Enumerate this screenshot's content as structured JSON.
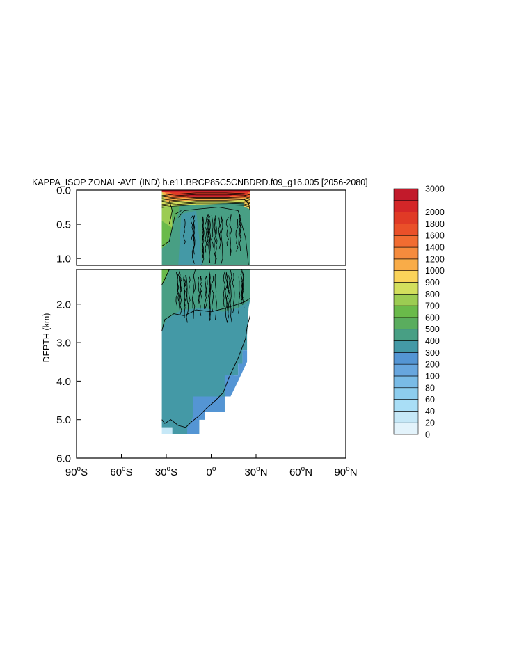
{
  "chart_data": {
    "type": "heatmap",
    "title": "KAPPA_ISOP ZONAL-AVE (IND) b.e11.BRCP85C5CNBDRD.f09_g16.005 [2056-2080]",
    "ylabel": "DEPTH (km)",
    "xlabel": "",
    "x_ticks": [
      {
        "value": -90,
        "num": "90",
        "hemi": "S"
      },
      {
        "value": -60,
        "num": "60",
        "hemi": "S"
      },
      {
        "value": -30,
        "num": "30",
        "hemi": "S"
      },
      {
        "value": 0,
        "num": "0",
        "hemi": ""
      },
      {
        "value": 30,
        "num": "30",
        "hemi": "N"
      },
      {
        "value": 60,
        "num": "60",
        "hemi": "N"
      },
      {
        "value": 90,
        "num": "90",
        "hemi": "N"
      }
    ],
    "xlim": [
      -90,
      90
    ],
    "upper_panel": {
      "ylim": [
        0.0,
        1.1
      ],
      "y_ticks": [
        "0.0",
        "0.5",
        "1.0"
      ],
      "y_tick_values": [
        0.0,
        0.5,
        1.0
      ]
    },
    "lower_panel": {
      "ylim": [
        1.1,
        6.0
      ],
      "y_ticks": [
        "2.0",
        "3.0",
        "4.0",
        "5.0",
        "6.0"
      ],
      "y_tick_values": [
        2.0,
        3.0,
        4.0,
        5.0,
        6.0
      ]
    },
    "colorbar": {
      "levels": [
        "0",
        "20",
        "40",
        "60",
        "80",
        "100",
        "200",
        "300",
        "400",
        "500",
        "600",
        "700",
        "800",
        "900",
        "1000",
        "1200",
        "1400",
        "1600",
        "1800",
        "2000",
        "3000"
      ],
      "colors": [
        "#e3f3fb",
        "#c6e8f7",
        "#a9def6",
        "#8dcdee",
        "#79bbe6",
        "#67a6de",
        "#5495d4",
        "#4499a6",
        "#489f84",
        "#5aad5e",
        "#6aba4a",
        "#9ccc52",
        "#d3df5d",
        "#fad35a",
        "#f9ac48",
        "#f58b3d",
        "#f16c31",
        "#ea5029",
        "#e03a26",
        "#d42628",
        "#c21a2b"
      ]
    },
    "regions": [
      {
        "level_index": 20,
        "lat": [
          -33,
          26
        ],
        "depth": [
          0.0,
          0.03
        ]
      },
      {
        "level_index": 18,
        "lat": [
          -25,
          24
        ],
        "depth": [
          0.03,
          0.09
        ]
      },
      {
        "level_index": 15,
        "lat": [
          -32,
          26
        ],
        "depth": [
          0.09,
          0.15
        ]
      },
      {
        "level_index": 11,
        "lat": [
          -33,
          -25
        ],
        "depth": [
          0.2,
          0.7
        ]
      },
      {
        "level_index": 8,
        "lat": [
          -25,
          26
        ],
        "depth": [
          0.25,
          1.1
        ]
      },
      {
        "level_index": 7,
        "lat": [
          -33,
          26
        ],
        "depth": [
          1.1,
          5.3
        ]
      },
      {
        "level_index": 6,
        "lat": [
          -20,
          0
        ],
        "depth": [
          4.0,
          5.4
        ]
      }
    ],
    "grid": false,
    "legend_placement": "right"
  }
}
